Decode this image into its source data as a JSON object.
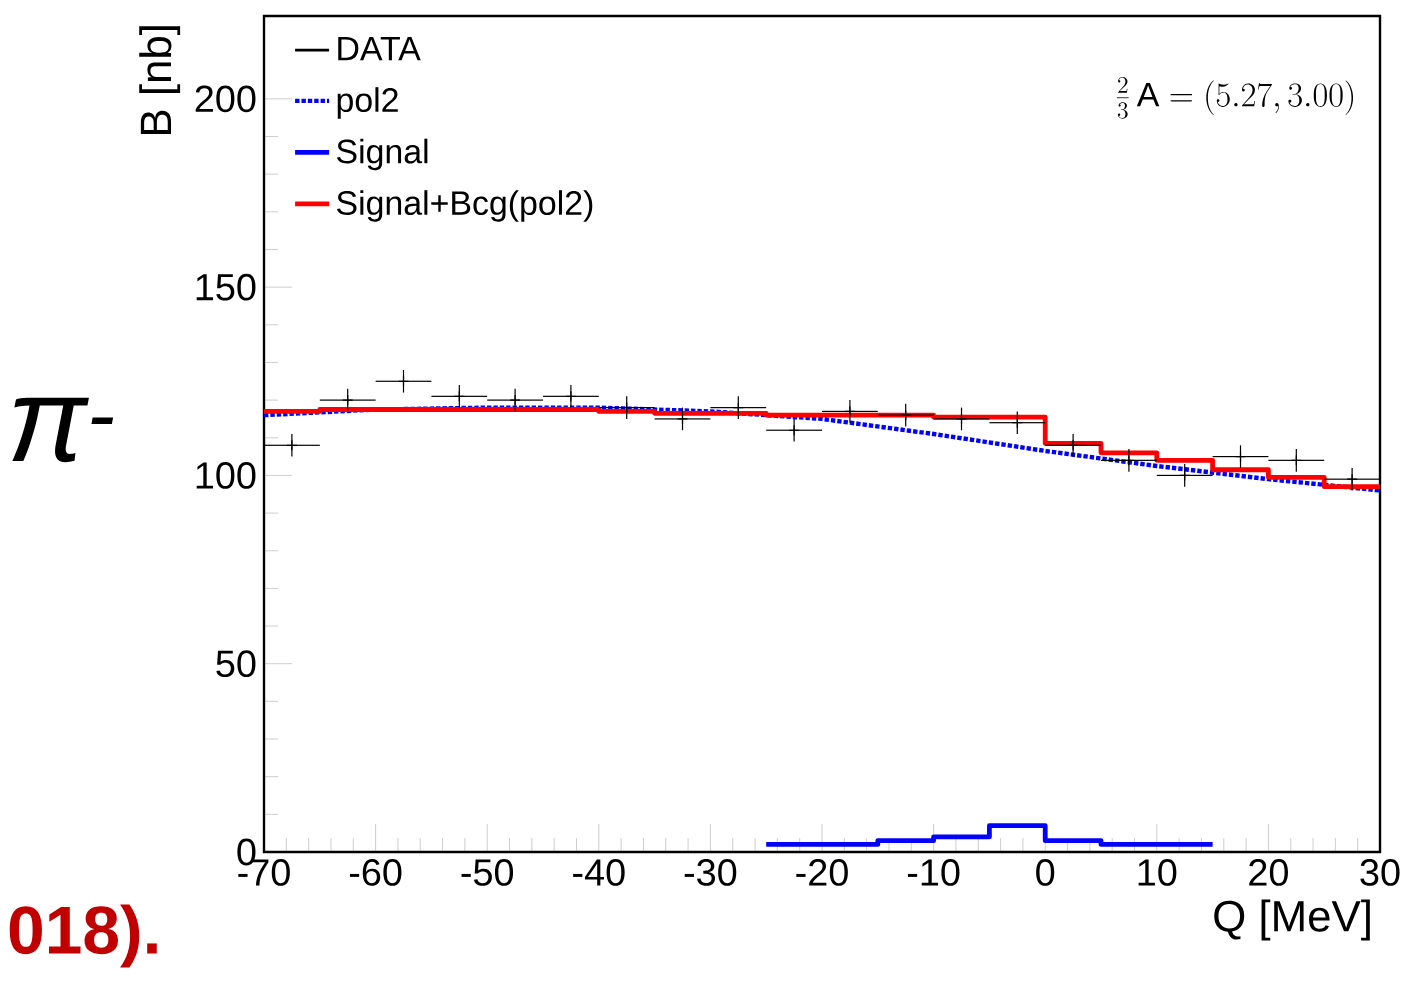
{
  "chart_data": {
    "type": "scatter",
    "xlabel": "Q [MeV]",
    "ylabel": "B [nb]",
    "annotations": [
      "\\frac{2}{3}\\,\\mathrm{A}=(5.27,3.00)",
      "π$^{-}$",
      "018)."
    ],
    "xlim": [
      -70,
      30
    ],
    "ylim": [
      0,
      222
    ],
    "xticks": [
      -70,
      -60,
      -50,
      -40,
      -30,
      -20,
      -10,
      0,
      10,
      20,
      30
    ],
    "yticks": [
      0,
      50,
      100,
      150,
      200
    ],
    "legend": "top left",
    "series": [
      {
        "name": "DATA",
        "color": "#000000",
        "marker": "cross",
        "x": [
          -67.5,
          -62.5,
          -57.5,
          -52.5,
          -47.5,
          -42.5,
          -37.5,
          -32.5,
          -27.5,
          -22.5,
          -17.5,
          -12.5,
          -7.5,
          -2.5,
          2.5,
          7.5,
          12.5,
          17.5,
          22.5,
          27.5
        ],
        "values": [
          108,
          120,
          125,
          121,
          120,
          121,
          118,
          115,
          118,
          112,
          117,
          116,
          115,
          114,
          108,
          104,
          100,
          105,
          104,
          99
        ],
        "errors": [
          3,
          3,
          3,
          3,
          3,
          3,
          3,
          3,
          3,
          3,
          3,
          3,
          3,
          3,
          3,
          3,
          3,
          3,
          3,
          3
        ],
        "xerrors": [
          2.5,
          2.5,
          2.5,
          2.5,
          2.5,
          2.5,
          2.5,
          2.5,
          2.5,
          2.5,
          2.5,
          2.5,
          2.5,
          2.5,
          2.5,
          2.5,
          2.5,
          2.5,
          2.5,
          2.5
        ]
      },
      {
        "type": "line",
        "name": "pol2",
        "color": "#0000ff",
        "line_style": "dotted",
        "x": [
          -70,
          -60,
          -50,
          -40,
          -30,
          -20,
          -10,
          0,
          10,
          20,
          30
        ],
        "values": [
          116,
          117.5,
          118,
          118,
          117,
          115,
          111,
          106.5,
          102.5,
          99,
          96
        ]
      },
      {
        "type": "step",
        "name": "Signal",
        "color": "#0000ff",
        "line_style": "solid",
        "x": [
          -25,
          -20,
          -15,
          -10,
          -5,
          0,
          5,
          10,
          15
        ],
        "values": [
          2,
          2,
          3,
          4,
          7,
          3,
          2,
          2,
          2
        ]
      },
      {
        "type": "step",
        "name": "Signal+Bcg(pol2)",
        "color": "#ff0000",
        "line_style": "solid",
        "x": [
          -70,
          -65,
          -60,
          -55,
          -50,
          -45,
          -40,
          -35,
          -30,
          -25,
          -20,
          -15,
          -10,
          -5,
          0,
          5,
          10,
          15,
          20,
          25,
          30
        ],
        "values": [
          117,
          117.5,
          117.5,
          117.5,
          117.5,
          117.5,
          117,
          116.5,
          116.5,
          116,
          116,
          116,
          115.5,
          115.5,
          108.5,
          106,
          104,
          101.5,
          99.5,
          97,
          97
        ]
      }
    ]
  }
}
